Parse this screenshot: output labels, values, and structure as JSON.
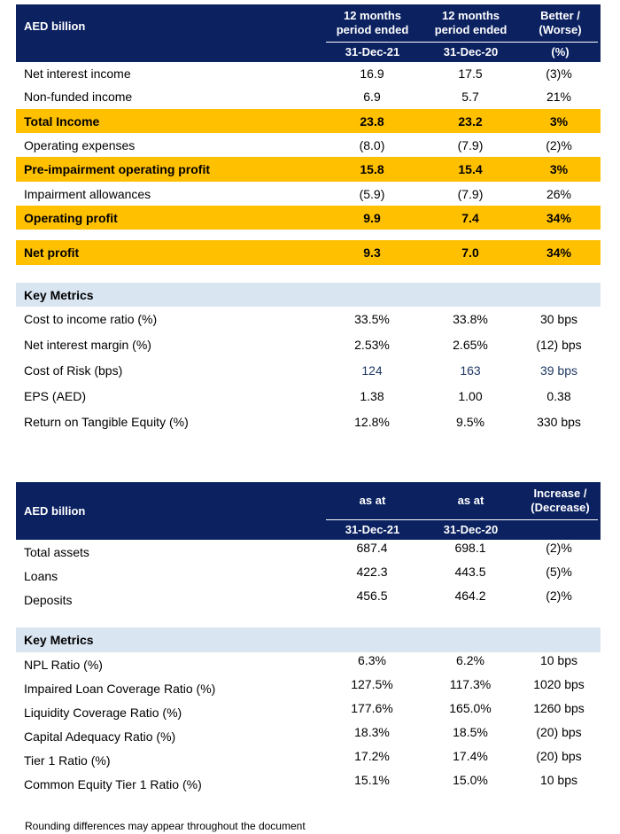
{
  "table1": {
    "header": {
      "label": "AED billion",
      "col1_line1": "12 months",
      "col1_line2": "period ended",
      "col1_date": "31-Dec-21",
      "col2_line1": "12 months",
      "col2_line2": "period ended",
      "col2_date": "31-Dec-20",
      "col3_line1": "Better /",
      "col3_line2": "(Worse)",
      "col3_unit": "(%)"
    },
    "rows": [
      {
        "label": "Net interest income",
        "v1": "16.9",
        "v2": "17.5",
        "v3": "(3)%"
      },
      {
        "label": "Non-funded income",
        "v1": "6.9",
        "v2": "5.7",
        "v3": "21%"
      },
      {
        "label": "Total Income",
        "v1": "23.8",
        "v2": "23.2",
        "v3": "3%"
      },
      {
        "label": "Operating expenses",
        "v1": "(8.0)",
        "v2": "(7.9)",
        "v3": "(2)%"
      },
      {
        "label": "Pre-impairment operating profit",
        "v1": "15.8",
        "v2": "15.4",
        "v3": "3%"
      },
      {
        "label": "Impairment allowances",
        "v1": "(5.9)",
        "v2": "(7.9)",
        "v3": "26%"
      },
      {
        "label": "Operating profit",
        "v1": "9.9",
        "v2": "7.4",
        "v3": "34%"
      },
      {
        "label": "Net profit",
        "v1": "9.3",
        "v2": "7.0",
        "v3": "34%"
      }
    ],
    "metrics_title": "Key Metrics",
    "metrics": [
      {
        "label": "Cost to income ratio (%)",
        "v1": "33.5%",
        "v2": "33.8%",
        "v3": "30 bps"
      },
      {
        "label": "Net interest margin (%)",
        "v1": "2.53%",
        "v2": "2.65%",
        "v3": "(12) bps"
      },
      {
        "label": "Cost of Risk (bps)",
        "v1": "124",
        "v2": "163",
        "v3": "39 bps"
      },
      {
        "label": "EPS (AED)",
        "v1": "1.38",
        "v2": "1.00",
        "v3": "0.38"
      },
      {
        "label": "Return on Tangible Equity (%)",
        "v1": "12.8%",
        "v2": "9.5%",
        "v3": "330 bps"
      }
    ]
  },
  "table2": {
    "header": {
      "label": "AED billion",
      "col1_line1": "as at",
      "col1_date": "31-Dec-21",
      "col2_line1": "as at",
      "col2_date": "31-Dec-20",
      "col3_line1": "Increase /",
      "col3_line2": "(Decrease)"
    },
    "rows": [
      {
        "label": "Total assets",
        "v1": "687.4",
        "v2": "698.1",
        "v3": "(2)%"
      },
      {
        "label": "Loans",
        "v1": "422.3",
        "v2": "443.5",
        "v3": "(5)%"
      },
      {
        "label": "Deposits",
        "v1": "456.5",
        "v2": "464.2",
        "v3": "(2)%"
      }
    ],
    "metrics_title": "Key Metrics",
    "metrics": [
      {
        "label": "NPL Ratio (%)",
        "v1": "6.3%",
        "v2": "6.2%",
        "v3": "10 bps"
      },
      {
        "label": "Impaired Loan Coverage Ratio (%)",
        "v1": "127.5%",
        "v2": "117.3%",
        "v3": "1020 bps"
      },
      {
        "label": "Liquidity Coverage Ratio (%)",
        "v1": "177.6%",
        "v2": "165.0%",
        "v3": "1260 bps"
      },
      {
        "label": "Capital Adequacy Ratio (%)",
        "v1": "18.3%",
        "v2": "18.5%",
        "v3": "(20) bps"
      },
      {
        "label": "Tier 1 Ratio (%)",
        "v1": "17.2%",
        "v2": "17.4%",
        "v3": "(20) bps"
      },
      {
        "label": "Common Equity Tier 1 Ratio (%)",
        "v1": "15.1%",
        "v2": "15.0%",
        "v3": "10 bps"
      }
    ]
  },
  "footnote": "Rounding differences may appear throughout the document",
  "colors": {
    "header_bg": "#0b2160",
    "highlight": "#ffc000",
    "metrics_bg": "#dae5f2",
    "blue_text": "#1f3864"
  }
}
